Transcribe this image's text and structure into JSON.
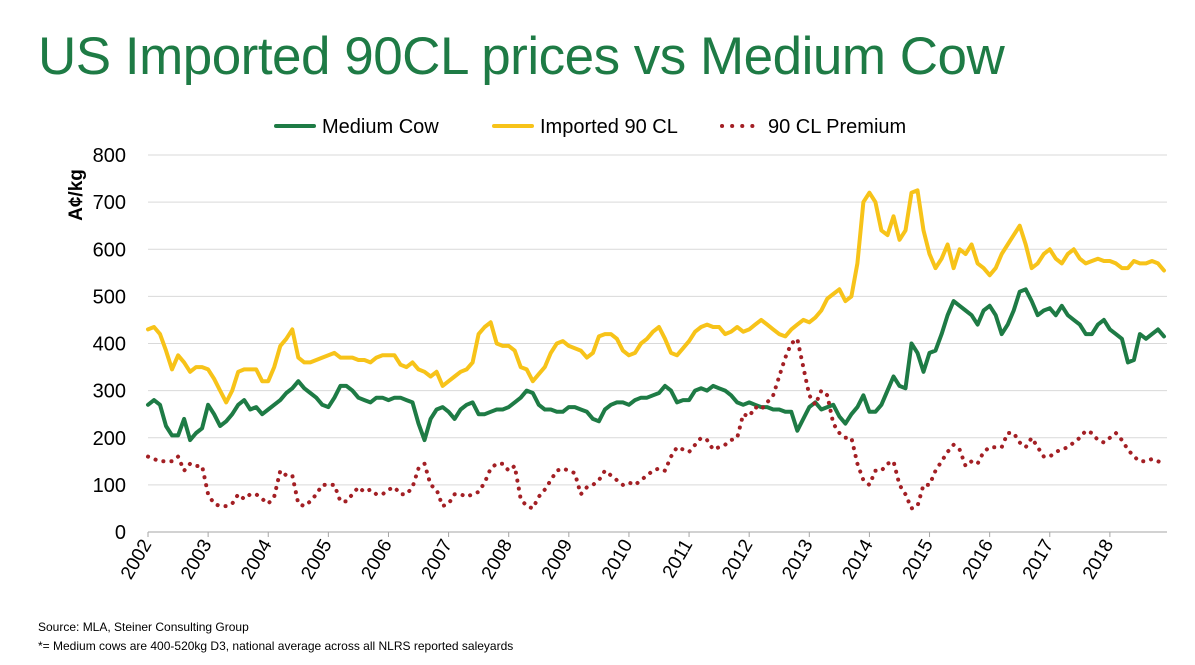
{
  "chart_data": {
    "type": "line",
    "title": "US Imported 90CL prices vs Medium Cow",
    "ylabel": "A¢/kg",
    "xlabel": "",
    "xlim": [
      2002,
      2018.95
    ],
    "ylim": [
      0,
      800
    ],
    "yticks": [
      0,
      100,
      200,
      300,
      400,
      500,
      600,
      700,
      800
    ],
    "xticks": [
      "2002",
      "2003",
      "2004",
      "2005",
      "2006",
      "2007",
      "2008",
      "2009",
      "2010",
      "2011",
      "2012",
      "2013",
      "2014",
      "2015",
      "2016",
      "2017",
      "2018"
    ],
    "grid": true,
    "legend_position": "top",
    "series": [
      {
        "name": "Medium Cow",
        "color": "#1e7b45",
        "style": "solid",
        "x": [
          2002.0,
          2002.1,
          2002.2,
          2002.3,
          2002.4,
          2002.5,
          2002.6,
          2002.7,
          2002.8,
          2002.9,
          2003.0,
          2003.1,
          2003.2,
          2003.3,
          2003.4,
          2003.5,
          2003.6,
          2003.7,
          2003.8,
          2003.9,
          2004.0,
          2004.1,
          2004.2,
          2004.3,
          2004.4,
          2004.5,
          2004.6,
          2004.7,
          2004.8,
          2004.9,
          2005.0,
          2005.1,
          2005.2,
          2005.3,
          2005.4,
          2005.5,
          2005.6,
          2005.7,
          2005.8,
          2005.9,
          2006.0,
          2006.1,
          2006.2,
          2006.3,
          2006.4,
          2006.5,
          2006.6,
          2006.7,
          2006.8,
          2006.9,
          2007.0,
          2007.1,
          2007.2,
          2007.3,
          2007.4,
          2007.5,
          2007.6,
          2007.7,
          2007.8,
          2007.9,
          2008.0,
          2008.1,
          2008.2,
          2008.3,
          2008.4,
          2008.5,
          2008.6,
          2008.7,
          2008.8,
          2008.9,
          2009.0,
          2009.1,
          2009.2,
          2009.3,
          2009.4,
          2009.5,
          2009.6,
          2009.7,
          2009.8,
          2009.9,
          2010.0,
          2010.1,
          2010.2,
          2010.3,
          2010.4,
          2010.5,
          2010.6,
          2010.7,
          2010.8,
          2010.9,
          2011.0,
          2011.1,
          2011.2,
          2011.3,
          2011.4,
          2011.5,
          2011.6,
          2011.7,
          2011.8,
          2011.9,
          2012.0,
          2012.1,
          2012.2,
          2012.3,
          2012.4,
          2012.5,
          2012.6,
          2012.7,
          2012.8,
          2012.9,
          2013.0,
          2013.1,
          2013.2,
          2013.3,
          2013.4,
          2013.5,
          2013.6,
          2013.7,
          2013.8,
          2013.9,
          2014.0,
          2014.1,
          2014.2,
          2014.3,
          2014.4,
          2014.5,
          2014.6,
          2014.7,
          2014.8,
          2014.9,
          2015.0,
          2015.1,
          2015.2,
          2015.3,
          2015.4,
          2015.5,
          2015.6,
          2015.7,
          2015.8,
          2015.9,
          2016.0,
          2016.1,
          2016.2,
          2016.3,
          2016.4,
          2016.5,
          2016.6,
          2016.7,
          2016.8,
          2016.9,
          2017.0,
          2017.1,
          2017.2,
          2017.3,
          2017.4,
          2017.5,
          2017.6,
          2017.7,
          2017.8,
          2017.9,
          2018.0,
          2018.1,
          2018.2,
          2018.3,
          2018.4,
          2018.5,
          2018.6,
          2018.7,
          2018.8,
          2018.9
        ],
        "y": [
          270,
          280,
          270,
          225,
          205,
          205,
          240,
          195,
          210,
          220,
          270,
          250,
          225,
          235,
          250,
          270,
          280,
          260,
          265,
          250,
          260,
          270,
          280,
          295,
          305,
          320,
          305,
          295,
          285,
          270,
          265,
          285,
          310,
          310,
          300,
          285,
          280,
          275,
          285,
          285,
          280,
          285,
          285,
          280,
          275,
          230,
          195,
          240,
          260,
          265,
          255,
          240,
          260,
          270,
          275,
          250,
          250,
          255,
          260,
          260,
          265,
          275,
          285,
          300,
          295,
          270,
          260,
          260,
          255,
          255,
          265,
          265,
          260,
          255,
          240,
          235,
          260,
          270,
          275,
          275,
          270,
          280,
          285,
          285,
          290,
          295,
          310,
          300,
          275,
          280,
          280,
          300,
          305,
          300,
          310,
          305,
          300,
          290,
          275,
          270,
          275,
          270,
          265,
          265,
          260,
          260,
          255,
          255,
          215,
          240,
          265,
          275,
          260,
          265,
          270,
          245,
          230,
          250,
          265,
          290,
          255,
          255,
          270,
          300,
          330,
          310,
          305,
          400,
          380,
          340,
          380,
          385,
          420,
          460,
          490,
          480,
          470,
          460,
          440,
          470,
          480,
          460,
          420,
          440,
          470,
          510,
          515,
          490,
          460,
          470,
          475,
          460,
          480,
          460,
          450,
          440,
          420,
          420,
          440,
          450,
          430,
          420,
          410,
          360,
          365,
          420,
          410,
          420,
          430,
          415
        ],
        "x_values_note_removed": true
      },
      {
        "name": "Imported 90 CL",
        "color": "#f7c319",
        "style": "solid",
        "x": [
          2002.0,
          2002.1,
          2002.2,
          2002.3,
          2002.4,
          2002.5,
          2002.6,
          2002.7,
          2002.8,
          2002.9,
          2003.0,
          2003.1,
          2003.2,
          2003.3,
          2003.4,
          2003.5,
          2003.6,
          2003.7,
          2003.8,
          2003.9,
          2004.0,
          2004.1,
          2004.2,
          2004.3,
          2004.4,
          2004.5,
          2004.6,
          2004.7,
          2004.8,
          2004.9,
          2005.0,
          2005.1,
          2005.2,
          2005.3,
          2005.4,
          2005.5,
          2005.6,
          2005.7,
          2005.8,
          2005.9,
          2006.0,
          2006.1,
          2006.2,
          2006.3,
          2006.4,
          2006.5,
          2006.6,
          2006.7,
          2006.8,
          2006.9,
          2007.0,
          2007.1,
          2007.2,
          2007.3,
          2007.4,
          2007.5,
          2007.6,
          2007.7,
          2007.8,
          2007.9,
          2008.0,
          2008.1,
          2008.2,
          2008.3,
          2008.4,
          2008.5,
          2008.6,
          2008.7,
          2008.8,
          2008.9,
          2009.0,
          2009.1,
          2009.2,
          2009.3,
          2009.4,
          2009.5,
          2009.6,
          2009.7,
          2009.8,
          2009.9,
          2010.0,
          2010.1,
          2010.2,
          2010.3,
          2010.4,
          2010.5,
          2010.6,
          2010.7,
          2010.8,
          2010.9,
          2011.0,
          2011.1,
          2011.2,
          2011.3,
          2011.4,
          2011.5,
          2011.6,
          2011.7,
          2011.8,
          2011.9,
          2012.0,
          2012.1,
          2012.2,
          2012.3,
          2012.4,
          2012.5,
          2012.6,
          2012.7,
          2012.8,
          2012.9,
          2013.0,
          2013.1,
          2013.2,
          2013.3,
          2013.4,
          2013.5,
          2013.6,
          2013.7,
          2013.8,
          2013.9,
          2014.0,
          2014.1,
          2014.2,
          2014.3,
          2014.4,
          2014.5,
          2014.6,
          2014.7,
          2014.8,
          2014.9,
          2015.0,
          2015.1,
          2015.2,
          2015.3,
          2015.4,
          2015.5,
          2015.6,
          2015.7,
          2015.8,
          2015.9,
          2016.0,
          2016.1,
          2016.2,
          2016.3,
          2016.4,
          2016.5,
          2016.6,
          2016.7,
          2016.8,
          2016.9,
          2017.0,
          2017.1,
          2017.2,
          2017.3,
          2017.4,
          2017.5,
          2017.6,
          2017.7,
          2017.8,
          2017.9,
          2018.0,
          2018.1,
          2018.2,
          2018.3,
          2018.4,
          2018.5,
          2018.6,
          2018.7,
          2018.8,
          2018.9
        ],
        "y": [
          430,
          435,
          420,
          385,
          345,
          375,
          360,
          340,
          350,
          350,
          345,
          325,
          300,
          275,
          300,
          340,
          345,
          345,
          345,
          320,
          320,
          350,
          395,
          410,
          430,
          370,
          360,
          360,
          365,
          370,
          375,
          380,
          370,
          370,
          370,
          365,
          365,
          360,
          370,
          375,
          375,
          375,
          355,
          350,
          360,
          345,
          340,
          330,
          340,
          310,
          320,
          330,
          340,
          345,
          360,
          420,
          435,
          445,
          400,
          395,
          395,
          385,
          350,
          345,
          320,
          335,
          350,
          380,
          400,
          405,
          395,
          390,
          385,
          370,
          380,
          415,
          420,
          420,
          410,
          385,
          375,
          380,
          400,
          410,
          425,
          435,
          410,
          380,
          375,
          390,
          405,
          425,
          435,
          440,
          435,
          435,
          420,
          425,
          435,
          425,
          430,
          440,
          450,
          440,
          430,
          420,
          415,
          430,
          440,
          450,
          445,
          455,
          470,
          495,
          505,
          515,
          490,
          500,
          570,
          700,
          720,
          700,
          640,
          630,
          670,
          620,
          640,
          720,
          725,
          640,
          590,
          560,
          580,
          610,
          560,
          600,
          590,
          610,
          570,
          560,
          545,
          560,
          590,
          610,
          630,
          650,
          610,
          560,
          570,
          590,
          600,
          580,
          570,
          590,
          600,
          580,
          570,
          575,
          580,
          575,
          575,
          570,
          560,
          560,
          575,
          570,
          570,
          575,
          570,
          555
        ],
        "x_values_note_removed": true
      },
      {
        "name": "90 CL Premium",
        "color": "#a31f24",
        "style": "dotted",
        "x": [
          2002.0,
          2002.1,
          2002.2,
          2002.3,
          2002.4,
          2002.5,
          2002.6,
          2002.7,
          2002.8,
          2002.9,
          2003.0,
          2003.1,
          2003.2,
          2003.3,
          2003.4,
          2003.5,
          2003.6,
          2003.7,
          2003.8,
          2003.9,
          2004.0,
          2004.1,
          2004.2,
          2004.3,
          2004.4,
          2004.5,
          2004.6,
          2004.7,
          2004.8,
          2004.9,
          2005.0,
          2005.1,
          2005.2,
          2005.3,
          2005.4,
          2005.5,
          2005.6,
          2005.7,
          2005.8,
          2005.9,
          2006.0,
          2006.1,
          2006.2,
          2006.3,
          2006.4,
          2006.5,
          2006.6,
          2006.7,
          2006.8,
          2006.9,
          2007.0,
          2007.1,
          2007.2,
          2007.3,
          2007.4,
          2007.5,
          2007.6,
          2007.7,
          2007.8,
          2007.9,
          2008.0,
          2008.1,
          2008.2,
          2008.3,
          2008.4,
          2008.5,
          2008.6,
          2008.7,
          2008.8,
          2008.9,
          2009.0,
          2009.1,
          2009.2,
          2009.3,
          2009.4,
          2009.5,
          2009.6,
          2009.7,
          2009.8,
          2009.9,
          2010.0,
          2010.1,
          2010.2,
          2010.3,
          2010.4,
          2010.5,
          2010.6,
          2010.7,
          2010.8,
          2010.9,
          2011.0,
          2011.1,
          2011.2,
          2011.3,
          2011.4,
          2011.5,
          2011.6,
          2011.7,
          2011.8,
          2011.9,
          2012.0,
          2012.1,
          2012.2,
          2012.3,
          2012.4,
          2012.5,
          2012.6,
          2012.7,
          2012.8,
          2012.9,
          2013.0,
          2013.1,
          2013.2,
          2013.3,
          2013.4,
          2013.5,
          2013.6,
          2013.7,
          2013.8,
          2013.9,
          2014.0,
          2014.1,
          2014.2,
          2014.3,
          2014.4,
          2014.5,
          2014.6,
          2014.7,
          2014.8,
          2014.9,
          2015.0,
          2015.1,
          2015.2,
          2015.3,
          2015.4,
          2015.5,
          2015.6,
          2015.7,
          2015.8,
          2015.9,
          2016.0,
          2016.1,
          2016.2,
          2016.3,
          2016.4,
          2016.5,
          2016.6,
          2016.7,
          2016.8,
          2016.9,
          2017.0,
          2017.1,
          2017.2,
          2017.3,
          2017.4,
          2017.5,
          2017.6,
          2017.7,
          2017.8,
          2017.9,
          2018.0,
          2018.1,
          2018.2,
          2018.3,
          2018.4,
          2018.5,
          2018.6,
          2018.7,
          2018.8,
          2018.9
        ],
        "y": [
          160,
          155,
          150,
          150,
          150,
          160,
          130,
          145,
          140,
          140,
          80,
          60,
          55,
          55,
          60,
          80,
          70,
          80,
          80,
          70,
          60,
          75,
          130,
          120,
          120,
          60,
          55,
          65,
          80,
          100,
          100,
          100,
          65,
          65,
          80,
          95,
          85,
          90,
          80,
          80,
          90,
          95,
          80,
          80,
          95,
          135,
          145,
          100,
          90,
          55,
          60,
          80,
          80,
          75,
          80,
          85,
          105,
          135,
          145,
          145,
          130,
          140,
          70,
          55,
          50,
          75,
          90,
          110,
          130,
          135,
          130,
          125,
          80,
          95,
          100,
          110,
          130,
          120,
          110,
          100,
          105,
          100,
          110,
          120,
          130,
          135,
          130,
          160,
          180,
          175,
          170,
          185,
          200,
          195,
          175,
          180,
          185,
          195,
          200,
          250,
          245,
          265,
          260,
          275,
          290,
          330,
          370,
          400,
          410,
          350,
          290,
          270,
          300,
          290,
          230,
          210,
          200,
          200,
          145,
          110,
          100,
          130,
          130,
          145,
          150,
          100,
          80,
          50,
          55,
          100,
          100,
          130,
          150,
          170,
          185,
          175,
          140,
          150,
          145,
          170,
          180,
          180,
          180,
          210,
          210,
          190,
          180,
          200,
          180,
          160,
          160,
          170,
          175,
          180,
          190,
          200,
          215,
          210,
          195,
          190,
          200,
          210,
          195,
          175,
          160,
          150,
          150,
          155,
          150,
          145
        ],
        "x_values_note_removed": true
      }
    ]
  },
  "source_note": "Source: MLA, Steiner Consulting Group",
  "footnote": "*= Medium cows are 400-520kg D3, national average across all NLRS reported saleyards"
}
